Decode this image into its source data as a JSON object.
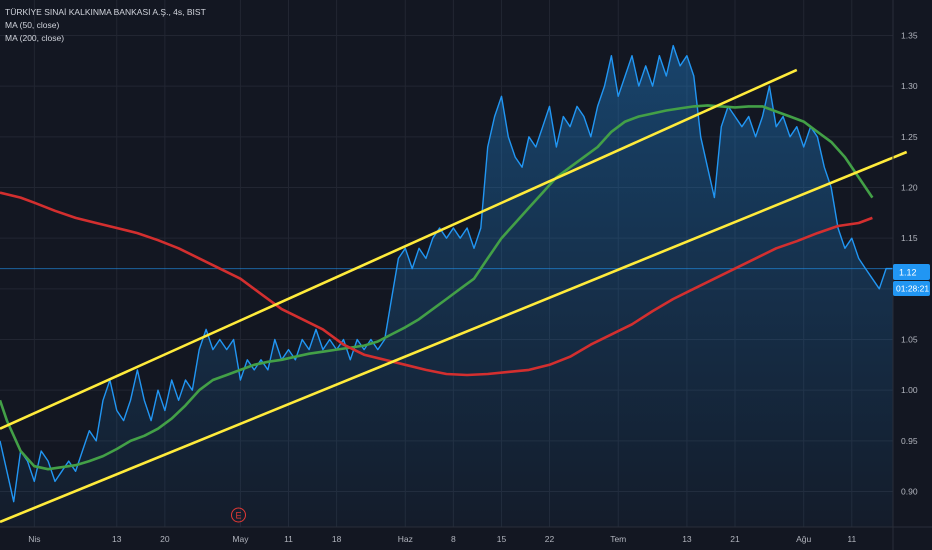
{
  "header": {
    "symbol_title": "TÜRKİYE SINAİ KALKINMA BANKASI A.Ş., 4s, BIST",
    "ma50_label": "MA (50, close)",
    "ma200_label": "MA (200, close)"
  },
  "price_marker": {
    "price_label": "1.12",
    "countdown_label": "01:28:21"
  },
  "earnings_marker": {
    "label": "E"
  },
  "colors": {
    "background": "#131722",
    "price_line": "#2196f3",
    "ma50": "#43a047",
    "ma200": "#d32f2f",
    "channel": "#ffeb3b",
    "marker": "#2196f3"
  },
  "chart_data": {
    "type": "line",
    "title": "TÜRKİYE SINAİ KALKINMA BANKASI A.Ş., 4s, BIST",
    "xlabel": "",
    "ylabel": "",
    "grid": true,
    "x_range": [
      -5,
      125
    ],
    "ylim": [
      0.865,
      1.385
    ],
    "x_ticks": [
      {
        "x": 0,
        "label": "Nis"
      },
      {
        "x": 12,
        "label": "13"
      },
      {
        "x": 19,
        "label": "20"
      },
      {
        "x": 30,
        "label": "May"
      },
      {
        "x": 37,
        "label": "11"
      },
      {
        "x": 44,
        "label": "18"
      },
      {
        "x": 54,
        "label": "Haz"
      },
      {
        "x": 61,
        "label": "8"
      },
      {
        "x": 68,
        "label": "15"
      },
      {
        "x": 75,
        "label": "22"
      },
      {
        "x": 85,
        "label": "Tem"
      },
      {
        "x": 95,
        "label": "13"
      },
      {
        "x": 102,
        "label": "21"
      },
      {
        "x": 112,
        "label": "Ağu"
      },
      {
        "x": 119,
        "label": "11"
      }
    ],
    "y_ticks": [
      0.9,
      0.95,
      1.0,
      1.05,
      1.1,
      1.15,
      1.2,
      1.25,
      1.3,
      1.35
    ],
    "last_price": 1.12,
    "series": [
      {
        "name": "",
        "role": "price",
        "points": [
          [
            -5,
            0.95
          ],
          [
            -4,
            0.92
          ],
          [
            -3,
            0.89
          ],
          [
            -2,
            0.94
          ],
          [
            -1,
            0.93
          ],
          [
            0,
            0.91
          ],
          [
            1,
            0.94
          ],
          [
            2,
            0.93
          ],
          [
            3,
            0.91
          ],
          [
            4,
            0.92
          ],
          [
            5,
            0.93
          ],
          [
            6,
            0.92
          ],
          [
            7,
            0.94
          ],
          [
            8,
            0.96
          ],
          [
            9,
            0.95
          ],
          [
            10,
            0.99
          ],
          [
            11,
            1.01
          ],
          [
            12,
            0.98
          ],
          [
            13,
            0.97
          ],
          [
            14,
            0.99
          ],
          [
            15,
            1.02
          ],
          [
            16,
            0.99
          ],
          [
            17,
            0.97
          ],
          [
            18,
            1.0
          ],
          [
            19,
            0.98
          ],
          [
            20,
            1.01
          ],
          [
            21,
            0.99
          ],
          [
            22,
            1.01
          ],
          [
            23,
            1.0
          ],
          [
            24,
            1.04
          ],
          [
            25,
            1.06
          ],
          [
            26,
            1.04
          ],
          [
            27,
            1.05
          ],
          [
            28,
            1.04
          ],
          [
            29,
            1.05
          ],
          [
            30,
            1.01
          ],
          [
            31,
            1.03
          ],
          [
            32,
            1.02
          ],
          [
            33,
            1.03
          ],
          [
            34,
            1.02
          ],
          [
            35,
            1.05
          ],
          [
            36,
            1.03
          ],
          [
            37,
            1.04
          ],
          [
            38,
            1.03
          ],
          [
            39,
            1.05
          ],
          [
            40,
            1.04
          ],
          [
            41,
            1.06
          ],
          [
            42,
            1.04
          ],
          [
            43,
            1.05
          ],
          [
            44,
            1.04
          ],
          [
            45,
            1.05
          ],
          [
            46,
            1.03
          ],
          [
            47,
            1.05
          ],
          [
            48,
            1.04
          ],
          [
            49,
            1.05
          ],
          [
            50,
            1.04
          ],
          [
            51,
            1.05
          ],
          [
            52,
            1.09
          ],
          [
            53,
            1.13
          ],
          [
            54,
            1.14
          ],
          [
            55,
            1.12
          ],
          [
            56,
            1.14
          ],
          [
            57,
            1.13
          ],
          [
            58,
            1.15
          ],
          [
            59,
            1.16
          ],
          [
            60,
            1.15
          ],
          [
            61,
            1.16
          ],
          [
            62,
            1.15
          ],
          [
            63,
            1.16
          ],
          [
            64,
            1.14
          ],
          [
            65,
            1.16
          ],
          [
            66,
            1.24
          ],
          [
            67,
            1.27
          ],
          [
            68,
            1.29
          ],
          [
            69,
            1.25
          ],
          [
            70,
            1.23
          ],
          [
            71,
            1.22
          ],
          [
            72,
            1.25
          ],
          [
            73,
            1.24
          ],
          [
            74,
            1.26
          ],
          [
            75,
            1.28
          ],
          [
            76,
            1.24
          ],
          [
            77,
            1.27
          ],
          [
            78,
            1.26
          ],
          [
            79,
            1.28
          ],
          [
            80,
            1.27
          ],
          [
            81,
            1.25
          ],
          [
            82,
            1.28
          ],
          [
            83,
            1.3
          ],
          [
            84,
            1.33
          ],
          [
            85,
            1.29
          ],
          [
            86,
            1.31
          ],
          [
            87,
            1.33
          ],
          [
            88,
            1.3
          ],
          [
            89,
            1.32
          ],
          [
            90,
            1.3
          ],
          [
            91,
            1.33
          ],
          [
            92,
            1.31
          ],
          [
            93,
            1.34
          ],
          [
            94,
            1.32
          ],
          [
            95,
            1.33
          ],
          [
            96,
            1.31
          ],
          [
            97,
            1.25
          ],
          [
            98,
            1.22
          ],
          [
            99,
            1.19
          ],
          [
            100,
            1.26
          ],
          [
            101,
            1.28
          ],
          [
            102,
            1.27
          ],
          [
            103,
            1.26
          ],
          [
            104,
            1.27
          ],
          [
            105,
            1.25
          ],
          [
            106,
            1.27
          ],
          [
            107,
            1.3
          ],
          [
            108,
            1.26
          ],
          [
            109,
            1.27
          ],
          [
            110,
            1.25
          ],
          [
            111,
            1.26
          ],
          [
            112,
            1.24
          ],
          [
            113,
            1.26
          ],
          [
            114,
            1.25
          ],
          [
            115,
            1.22
          ],
          [
            116,
            1.2
          ],
          [
            117,
            1.16
          ],
          [
            118,
            1.14
          ],
          [
            119,
            1.15
          ],
          [
            120,
            1.13
          ],
          [
            121,
            1.12
          ],
          [
            122,
            1.11
          ],
          [
            123,
            1.1
          ],
          [
            124,
            1.12
          ],
          [
            125,
            1.12
          ]
        ]
      },
      {
        "name": "MA (50, close)",
        "role": "ma50",
        "points": [
          [
            -5,
            0.99
          ],
          [
            -4,
            0.97
          ],
          [
            -2,
            0.94
          ],
          [
            0,
            0.925
          ],
          [
            2,
            0.922
          ],
          [
            4,
            0.924
          ],
          [
            6,
            0.926
          ],
          [
            8,
            0.93
          ],
          [
            10,
            0.935
          ],
          [
            12,
            0.942
          ],
          [
            14,
            0.95
          ],
          [
            16,
            0.955
          ],
          [
            18,
            0.962
          ],
          [
            20,
            0.972
          ],
          [
            22,
            0.985
          ],
          [
            24,
            1.0
          ],
          [
            26,
            1.01
          ],
          [
            28,
            1.015
          ],
          [
            30,
            1.02
          ],
          [
            32,
            1.025
          ],
          [
            34,
            1.028
          ],
          [
            36,
            1.03
          ],
          [
            38,
            1.033
          ],
          [
            40,
            1.036
          ],
          [
            42,
            1.038
          ],
          [
            44,
            1.04
          ],
          [
            46,
            1.042
          ],
          [
            48,
            1.044
          ],
          [
            50,
            1.048
          ],
          [
            52,
            1.055
          ],
          [
            54,
            1.062
          ],
          [
            56,
            1.07
          ],
          [
            58,
            1.08
          ],
          [
            60,
            1.09
          ],
          [
            62,
            1.1
          ],
          [
            64,
            1.11
          ],
          [
            66,
            1.13
          ],
          [
            68,
            1.15
          ],
          [
            70,
            1.165
          ],
          [
            72,
            1.18
          ],
          [
            74,
            1.195
          ],
          [
            76,
            1.21
          ],
          [
            78,
            1.22
          ],
          [
            80,
            1.23
          ],
          [
            82,
            1.24
          ],
          [
            84,
            1.255
          ],
          [
            86,
            1.265
          ],
          [
            88,
            1.27
          ],
          [
            90,
            1.273
          ],
          [
            92,
            1.276
          ],
          [
            94,
            1.278
          ],
          [
            96,
            1.28
          ],
          [
            98,
            1.281
          ],
          [
            100,
            1.28
          ],
          [
            102,
            1.279
          ],
          [
            104,
            1.28
          ],
          [
            106,
            1.28
          ],
          [
            108,
            1.275
          ],
          [
            110,
            1.27
          ],
          [
            112,
            1.265
          ],
          [
            114,
            1.255
          ],
          [
            116,
            1.245
          ],
          [
            118,
            1.23
          ],
          [
            120,
            1.21
          ],
          [
            122,
            1.19
          ]
        ]
      },
      {
        "name": "MA (200, close)",
        "role": "ma200",
        "points": [
          [
            -5,
            1.195
          ],
          [
            -2,
            1.19
          ],
          [
            0,
            1.185
          ],
          [
            3,
            1.177
          ],
          [
            6,
            1.17
          ],
          [
            9,
            1.165
          ],
          [
            12,
            1.16
          ],
          [
            15,
            1.155
          ],
          [
            18,
            1.148
          ],
          [
            21,
            1.14
          ],
          [
            24,
            1.13
          ],
          [
            27,
            1.12
          ],
          [
            30,
            1.11
          ],
          [
            33,
            1.095
          ],
          [
            36,
            1.08
          ],
          [
            39,
            1.07
          ],
          [
            42,
            1.06
          ],
          [
            45,
            1.045
          ],
          [
            48,
            1.035
          ],
          [
            51,
            1.03
          ],
          [
            54,
            1.025
          ],
          [
            57,
            1.02
          ],
          [
            60,
            1.016
          ],
          [
            63,
            1.015
          ],
          [
            66,
            1.016
          ],
          [
            69,
            1.018
          ],
          [
            72,
            1.02
          ],
          [
            75,
            1.025
          ],
          [
            78,
            1.033
          ],
          [
            81,
            1.045
          ],
          [
            84,
            1.055
          ],
          [
            87,
            1.065
          ],
          [
            90,
            1.078
          ],
          [
            93,
            1.09
          ],
          [
            96,
            1.1
          ],
          [
            99,
            1.11
          ],
          [
            102,
            1.12
          ],
          [
            105,
            1.13
          ],
          [
            108,
            1.14
          ],
          [
            111,
            1.147
          ],
          [
            114,
            1.155
          ],
          [
            117,
            1.162
          ],
          [
            120,
            1.165
          ],
          [
            122,
            1.17
          ]
        ]
      },
      {
        "name": "",
        "role": "channel",
        "points": [
          [
            -5,
            0.962
          ],
          [
            111,
            1.316
          ]
        ]
      },
      {
        "name": "",
        "role": "channel",
        "points": [
          [
            -5,
            0.87
          ],
          [
            127,
            1.235
          ]
        ]
      }
    ],
    "annotations": [
      {
        "type": "earnings",
        "label": "E",
        "x": 27
      }
    ]
  }
}
